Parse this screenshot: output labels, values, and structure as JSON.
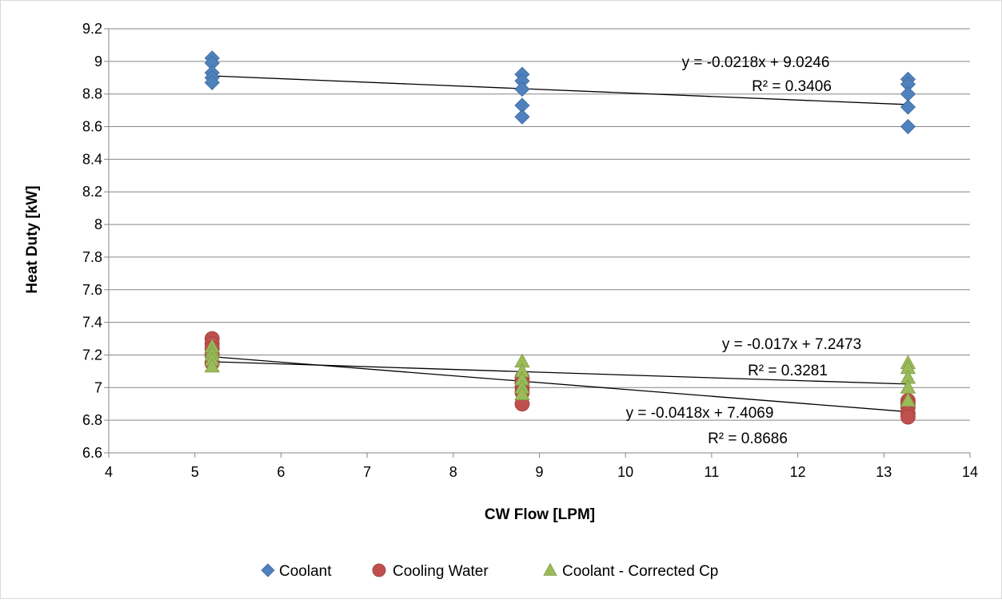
{
  "chart_data": {
    "type": "scatter",
    "title": "",
    "xlabel": "CW Flow [LPM]",
    "ylabel": "Heat Duty [kW]",
    "xlim": [
      4,
      14
    ],
    "ylim": [
      6.6,
      9.2
    ],
    "x_ticks": [
      "4",
      "5",
      "6",
      "7",
      "8",
      "9",
      "10",
      "11",
      "12",
      "13",
      "14"
    ],
    "y_ticks": [
      "6.6",
      "6.8",
      "7",
      "7.2",
      "7.4",
      "7.6",
      "7.8",
      "8",
      "8.2",
      "8.4",
      "8.6",
      "8.8",
      "9",
      "9.2"
    ],
    "grid": "horizontal major gridlines",
    "legend_position": "bottom",
    "series": [
      {
        "name": "Coolant",
        "marker": "diamond",
        "color": "#4F81BD",
        "points": [
          [
            5.2,
            9.02
          ],
          [
            5.2,
            8.99
          ],
          [
            5.2,
            8.93
          ],
          [
            5.2,
            8.9
          ],
          [
            5.2,
            8.87
          ],
          [
            8.8,
            8.92
          ],
          [
            8.8,
            8.88
          ],
          [
            8.8,
            8.83
          ],
          [
            8.8,
            8.73
          ],
          [
            8.8,
            8.66
          ],
          [
            13.28,
            8.89
          ],
          [
            13.28,
            8.86
          ],
          [
            13.28,
            8.8
          ],
          [
            13.28,
            8.72
          ],
          [
            13.28,
            8.6
          ]
        ],
        "trendline": {
          "equation": "y = -0.0218x + 9.0246",
          "r2": "R² = 0.3406",
          "slope": -0.0218,
          "intercept": 9.0246
        }
      },
      {
        "name": "Cooling Water",
        "marker": "circle",
        "color": "#C0504D",
        "points": [
          [
            5.2,
            7.3
          ],
          [
            5.2,
            7.27
          ],
          [
            5.2,
            7.24
          ],
          [
            5.2,
            7.2
          ],
          [
            5.2,
            7.15
          ],
          [
            8.8,
            7.06
          ],
          [
            8.8,
            7.03
          ],
          [
            8.8,
            7.0
          ],
          [
            8.8,
            6.97
          ],
          [
            8.8,
            6.9
          ],
          [
            13.28,
            6.92
          ],
          [
            13.28,
            6.9
          ],
          [
            13.28,
            6.88
          ],
          [
            13.28,
            6.84
          ],
          [
            13.28,
            6.82
          ]
        ],
        "trendline": {
          "equation": "y = -0.0418x + 7.4069",
          "r2": "R² = 0.8686",
          "slope": -0.0418,
          "intercept": 7.4069
        }
      },
      {
        "name": "Coolant - Corrected Cp",
        "marker": "triangle",
        "color": "#9BBB59",
        "points": [
          [
            5.2,
            7.25
          ],
          [
            5.2,
            7.22
          ],
          [
            5.2,
            7.2
          ],
          [
            5.2,
            7.17
          ],
          [
            5.2,
            7.13
          ],
          [
            8.8,
            7.16
          ],
          [
            8.8,
            7.1
          ],
          [
            8.8,
            7.05
          ],
          [
            8.8,
            7.0
          ],
          [
            8.8,
            6.96
          ],
          [
            13.28,
            7.15
          ],
          [
            13.28,
            7.12
          ],
          [
            13.28,
            7.06
          ],
          [
            13.28,
            7.0
          ],
          [
            13.28,
            6.92
          ]
        ],
        "trendline": {
          "equation": "y = -0.017x + 7.2473",
          "r2": "R² = 0.3281",
          "slope": -0.017,
          "intercept": 7.2473
        }
      }
    ]
  }
}
